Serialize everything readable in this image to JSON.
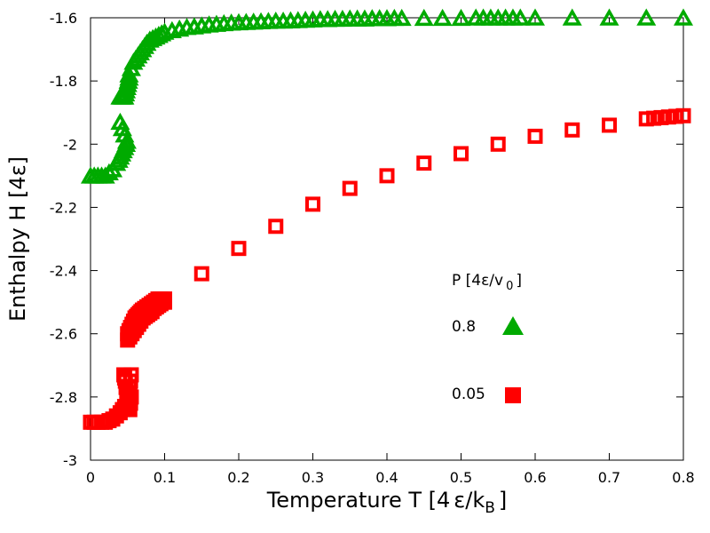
{
  "chart_data": {
    "type": "scatter",
    "xlabel_main": "Temperature T [4",
    "xlabel_eps": "ε",
    "xlabel_slash": "/k",
    "xlabel_sub": "B",
    "xlabel_close": "]",
    "ylabel": "Enthalpy H [4ε]",
    "xlim": [
      0,
      0.8
    ],
    "ylim": [
      -3,
      -1.6
    ],
    "xticks": [
      0,
      0.1,
      0.2,
      0.3,
      0.4,
      0.5,
      0.6,
      0.7,
      0.8
    ],
    "xtick_labels": [
      "0",
      "0.1",
      "0.2",
      "0.3",
      "0.4",
      "0.5",
      "0.6",
      "0.7",
      "0.8"
    ],
    "yticks": [
      -3,
      -2.8,
      -2.6,
      -2.4,
      -2.2,
      -2,
      -1.8,
      -1.6
    ],
    "ytick_labels": [
      "-3",
      "-2.8",
      "-2.6",
      "-2.4",
      "-2.2",
      "-2",
      "-1.8",
      "-1.6"
    ],
    "legend": {
      "title_main": "P [4ε/v",
      "title_sub": "0",
      "title_close": "]"
    },
    "series": [
      {
        "name": "0.8",
        "marker": "triangle",
        "color": "#00aa00",
        "x": [
          0.0,
          0.005,
          0.01,
          0.015,
          0.02,
          0.025,
          0.03,
          0.035,
          0.038,
          0.04,
          0.042,
          0.044,
          0.046,
          0.048,
          0.04,
          0.041,
          0.042,
          0.043,
          0.044,
          0.045,
          0.046,
          0.047,
          0.048,
          0.049,
          0.05,
          0.051,
          0.052,
          0.04,
          0.043,
          0.046,
          0.049,
          0.052,
          0.055,
          0.058,
          0.061,
          0.064,
          0.067,
          0.07,
          0.073,
          0.076,
          0.08,
          0.084,
          0.088,
          0.092,
          0.096,
          0.1,
          0.11,
          0.12,
          0.13,
          0.14,
          0.15,
          0.16,
          0.17,
          0.18,
          0.19,
          0.2,
          0.21,
          0.22,
          0.23,
          0.24,
          0.25,
          0.26,
          0.27,
          0.28,
          0.29,
          0.3,
          0.31,
          0.32,
          0.33,
          0.34,
          0.35,
          0.36,
          0.37,
          0.38,
          0.39,
          0.4,
          0.41,
          0.42,
          0.45,
          0.475,
          0.5,
          0.52,
          0.53,
          0.54,
          0.55,
          0.56,
          0.57,
          0.58,
          0.6,
          0.65,
          0.7,
          0.75,
          0.8
        ],
        "y": [
          -2.1,
          -2.1,
          -2.1,
          -2.1,
          -2.1,
          -2.09,
          -2.08,
          -2.06,
          -2.05,
          -2.04,
          -2.03,
          -2.02,
          -2.01,
          -2.0,
          -1.85,
          -1.85,
          -1.85,
          -1.85,
          -1.85,
          -1.85,
          -1.85,
          -1.84,
          -1.83,
          -1.82,
          -1.81,
          -1.8,
          -1.79,
          -1.93,
          -1.95,
          -1.97,
          -1.99,
          -1.78,
          -1.76,
          -1.74,
          -1.73,
          -1.72,
          -1.71,
          -1.7,
          -1.69,
          -1.68,
          -1.67,
          -1.665,
          -1.66,
          -1.655,
          -1.65,
          -1.645,
          -1.64,
          -1.635,
          -1.63,
          -1.628,
          -1.625,
          -1.622,
          -1.62,
          -1.618,
          -1.616,
          -1.615,
          -1.614,
          -1.613,
          -1.612,
          -1.611,
          -1.61,
          -1.61,
          -1.609,
          -1.608,
          -1.607,
          -1.606,
          -1.605,
          -1.605,
          -1.604,
          -1.604,
          -1.603,
          -1.603,
          -1.603,
          -1.602,
          -1.602,
          -1.602,
          -1.601,
          -1.601,
          -1.601,
          -1.601,
          -1.601,
          -1.6,
          -1.6,
          -1.6,
          -1.6,
          -1.6,
          -1.6,
          -1.6,
          -1.6,
          -1.6,
          -1.6,
          -1.6,
          -1.6
        ]
      },
      {
        "name": "0.05",
        "marker": "square",
        "color": "#ff0000",
        "x": [
          0.0,
          0.005,
          0.01,
          0.015,
          0.02,
          0.025,
          0.03,
          0.035,
          0.04,
          0.043,
          0.046,
          0.049,
          0.051,
          0.052,
          0.053,
          0.054,
          0.055,
          0.055,
          0.054,
          0.053,
          0.052,
          0.051,
          0.05,
          0.049,
          0.048,
          0.047,
          0.046,
          0.045,
          0.05,
          0.052,
          0.054,
          0.056,
          0.058,
          0.06,
          0.062,
          0.064,
          0.066,
          0.068,
          0.07,
          0.073,
          0.076,
          0.079,
          0.082,
          0.085,
          0.088,
          0.091,
          0.094,
          0.097,
          0.1,
          0.05,
          0.053,
          0.056,
          0.059,
          0.062,
          0.065,
          0.068,
          0.071,
          0.074,
          0.077,
          0.08,
          0.083,
          0.086,
          0.089,
          0.092,
          0.095,
          0.098,
          0.1,
          0.15,
          0.2,
          0.25,
          0.3,
          0.35,
          0.4,
          0.45,
          0.5,
          0.55,
          0.6,
          0.65,
          0.7,
          0.75,
          0.76,
          0.77,
          0.78,
          0.79,
          0.8
        ],
        "y": [
          -2.88,
          -2.88,
          -2.88,
          -2.88,
          -2.88,
          -2.875,
          -2.87,
          -2.86,
          -2.85,
          -2.84,
          -2.83,
          -2.82,
          -2.81,
          -2.79,
          -2.77,
          -2.75,
          -2.73,
          -2.8,
          -2.82,
          -2.84,
          -2.83,
          -2.82,
          -2.81,
          -2.79,
          -2.77,
          -2.75,
          -2.74,
          -2.73,
          -2.6,
          -2.59,
          -2.58,
          -2.57,
          -2.56,
          -2.55,
          -2.545,
          -2.54,
          -2.535,
          -2.53,
          -2.525,
          -2.52,
          -2.515,
          -2.51,
          -2.505,
          -2.5,
          -2.495,
          -2.49,
          -2.49,
          -2.49,
          -2.49,
          -2.62,
          -2.61,
          -2.6,
          -2.59,
          -2.58,
          -2.57,
          -2.56,
          -2.55,
          -2.545,
          -2.54,
          -2.535,
          -2.53,
          -2.52,
          -2.515,
          -2.51,
          -2.505,
          -2.5,
          -2.5,
          -2.41,
          -2.33,
          -2.26,
          -2.19,
          -2.14,
          -2.1,
          -2.06,
          -2.03,
          -2.0,
          -1.975,
          -1.955,
          -1.94,
          -1.92,
          -1.918,
          -1.916,
          -1.914,
          -1.912,
          -1.91
        ]
      }
    ]
  }
}
